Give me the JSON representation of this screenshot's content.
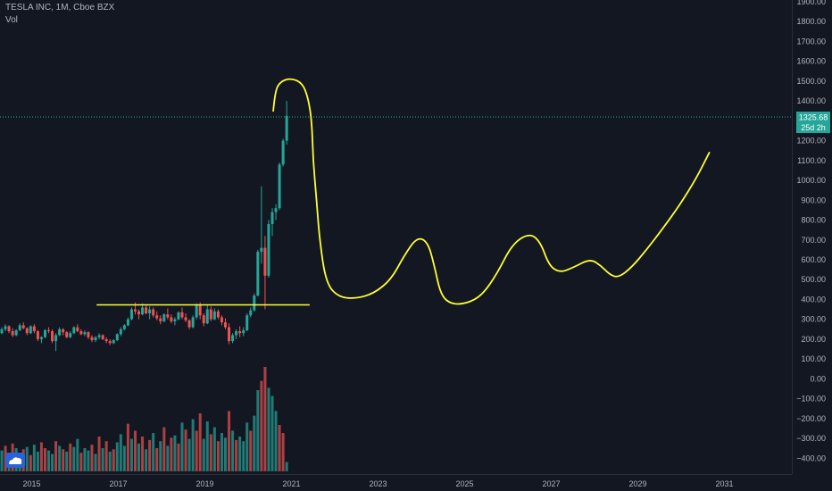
{
  "header": {
    "symbol_line": "TESLA INC, 1M, Cboe BZX",
    "volume_label": "Vol"
  },
  "colors": {
    "background": "#131722",
    "up": "#26a69a",
    "down": "#ef5350",
    "up_volume": "#26a69a",
    "down_volume": "#ef5350",
    "drawing": "#ffff33",
    "last_price_line": "#26a69a",
    "axis_text": "#b2b5be"
  },
  "price_tag": {
    "value": "1325.68",
    "countdown": "25d 2h"
  },
  "chart_data": {
    "type": "candlestick",
    "title": "",
    "xlabel": "",
    "ylabel": "",
    "y_axis_side": "right",
    "y_ticks": [
      "1900.00",
      "1800.00",
      "1700.00",
      "1600.00",
      "1500.00",
      "1400.00",
      "1300.00",
      "1200.00",
      "1100.00",
      "1000.00",
      "900.00",
      "800.00",
      "700.00",
      "600.00",
      "500.00",
      "400.00",
      "300.00",
      "200.00",
      "100.00",
      "0.00",
      "−100.00",
      "−200.00",
      "−300.00",
      "−400.00"
    ],
    "y_tick_values": [
      1900,
      1800,
      1700,
      1600,
      1500,
      1400,
      1300,
      1200,
      1100,
      1000,
      900,
      800,
      700,
      600,
      500,
      400,
      300,
      200,
      100,
      0,
      -100,
      -200,
      -300,
      -400
    ],
    "ylim": [
      -450,
      1950
    ],
    "x_ticks": [
      "2015",
      "2017",
      "2019",
      "2021",
      "2023",
      "2025",
      "2027",
      "2029",
      "2031"
    ],
    "x_tick_years": [
      2015,
      2017,
      2019,
      2021,
      2023,
      2025,
      2027,
      2029,
      2031
    ],
    "xlim": [
      2014.42,
      2032.0
    ],
    "last_price": 1325.68,
    "candles": [
      [
        230,
        260,
        225,
        250
      ],
      [
        250,
        275,
        240,
        265
      ],
      [
        265,
        270,
        230,
        240
      ],
      [
        240,
        255,
        210,
        220
      ],
      [
        220,
        250,
        215,
        245
      ],
      [
        245,
        280,
        240,
        270
      ],
      [
        270,
        285,
        250,
        255
      ],
      [
        255,
        260,
        220,
        230
      ],
      [
        230,
        270,
        225,
        265
      ],
      [
        265,
        275,
        230,
        240
      ],
      [
        240,
        245,
        190,
        200
      ],
      [
        200,
        215,
        180,
        210
      ],
      [
        210,
        250,
        205,
        245
      ],
      [
        245,
        260,
        230,
        240
      ],
      [
        240,
        250,
        180,
        190
      ],
      [
        190,
        230,
        140,
        220
      ],
      [
        220,
        260,
        215,
        250
      ],
      [
        250,
        255,
        220,
        235
      ],
      [
        235,
        240,
        205,
        210
      ],
      [
        210,
        240,
        205,
        230
      ],
      [
        230,
        265,
        225,
        260
      ],
      [
        260,
        275,
        235,
        240
      ],
      [
        240,
        250,
        220,
        225
      ],
      [
        225,
        245,
        215,
        235
      ],
      [
        235,
        240,
        200,
        210
      ],
      [
        210,
        220,
        185,
        195
      ],
      [
        195,
        215,
        185,
        210
      ],
      [
        210,
        230,
        200,
        220
      ],
      [
        220,
        225,
        195,
        200
      ],
      [
        200,
        210,
        180,
        190
      ],
      [
        190,
        200,
        170,
        180
      ],
      [
        180,
        200,
        175,
        195
      ],
      [
        195,
        230,
        190,
        225
      ],
      [
        225,
        260,
        215,
        250
      ],
      [
        250,
        275,
        245,
        270
      ],
      [
        270,
        310,
        265,
        300
      ],
      [
        300,
        360,
        295,
        350
      ],
      [
        350,
        385,
        325,
        340
      ],
      [
        340,
        350,
        300,
        325
      ],
      [
        325,
        380,
        320,
        360
      ],
      [
        360,
        370,
        325,
        330
      ],
      [
        330,
        365,
        300,
        350
      ],
      [
        350,
        360,
        310,
        320
      ],
      [
        320,
        340,
        295,
        305
      ],
      [
        305,
        320,
        275,
        290
      ],
      [
        290,
        330,
        285,
        325
      ],
      [
        325,
        355,
        300,
        310
      ],
      [
        310,
        325,
        280,
        290
      ],
      [
        290,
        310,
        270,
        300
      ],
      [
        300,
        340,
        295,
        335
      ],
      [
        335,
        360,
        300,
        310
      ],
      [
        310,
        330,
        285,
        295
      ],
      [
        295,
        300,
        250,
        260
      ],
      [
        260,
        320,
        255,
        310
      ],
      [
        310,
        380,
        300,
        370
      ],
      [
        370,
        385,
        300,
        320
      ],
      [
        320,
        330,
        265,
        280
      ],
      [
        280,
        370,
        275,
        350
      ],
      [
        350,
        365,
        290,
        300
      ],
      [
        300,
        355,
        295,
        340
      ],
      [
        340,
        350,
        300,
        310
      ],
      [
        310,
        320,
        270,
        285
      ],
      [
        285,
        305,
        250,
        260
      ],
      [
        260,
        280,
        175,
        190
      ],
      [
        190,
        230,
        180,
        220
      ],
      [
        220,
        250,
        200,
        240
      ],
      [
        240,
        265,
        210,
        230
      ],
      [
        230,
        260,
        215,
        245
      ],
      [
        245,
        330,
        240,
        320
      ],
      [
        320,
        360,
        310,
        345
      ],
      [
        345,
        430,
        340,
        420
      ],
      [
        420,
        650,
        415,
        640
      ],
      [
        640,
        970,
        580,
        660
      ],
      [
        660,
        720,
        350,
        520
      ],
      [
        520,
        800,
        510,
        780
      ],
      [
        780,
        860,
        720,
        840
      ],
      [
        840,
        880,
        800,
        860
      ],
      [
        860,
        1090,
        850,
        1080
      ],
      [
        1080,
        1210,
        1070,
        1200
      ],
      [
        1200,
        1400,
        1180,
        1325
      ]
    ],
    "volume_scale": [
      0,
      1000
    ],
    "volume": [
      [
        180,
        1
      ],
      [
        220,
        0
      ],
      [
        150,
        1
      ],
      [
        240,
        0
      ],
      [
        200,
        1
      ],
      [
        160,
        1
      ],
      [
        190,
        0
      ],
      [
        210,
        1
      ],
      [
        140,
        0
      ],
      [
        230,
        1
      ],
      [
        170,
        1
      ],
      [
        250,
        0
      ],
      [
        200,
        0
      ],
      [
        180,
        1
      ],
      [
        150,
        1
      ],
      [
        260,
        0
      ],
      [
        220,
        1
      ],
      [
        190,
        0
      ],
      [
        170,
        1
      ],
      [
        240,
        0
      ],
      [
        210,
        1
      ],
      [
        280,
        1
      ],
      [
        160,
        0
      ],
      [
        200,
        1
      ],
      [
        180,
        1
      ],
      [
        230,
        0
      ],
      [
        150,
        1
      ],
      [
        300,
        0
      ],
      [
        200,
        1
      ],
      [
        260,
        0
      ],
      [
        170,
        1
      ],
      [
        190,
        0
      ],
      [
        250,
        1
      ],
      [
        320,
        1
      ],
      [
        220,
        1
      ],
      [
        410,
        0
      ],
      [
        280,
        1
      ],
      [
        350,
        0
      ],
      [
        240,
        1
      ],
      [
        300,
        0
      ],
      [
        190,
        1
      ],
      [
        270,
        0
      ],
      [
        330,
        1
      ],
      [
        200,
        0
      ],
      [
        260,
        1
      ],
      [
        380,
        0
      ],
      [
        220,
        1
      ],
      [
        290,
        0
      ],
      [
        310,
        1
      ],
      [
        240,
        0
      ],
      [
        420,
        1
      ],
      [
        360,
        0
      ],
      [
        280,
        1
      ],
      [
        450,
        1
      ],
      [
        350,
        0
      ],
      [
        500,
        0
      ],
      [
        280,
        1
      ],
      [
        430,
        1
      ],
      [
        320,
        0
      ],
      [
        380,
        1
      ],
      [
        260,
        0
      ],
      [
        330,
        1
      ],
      [
        290,
        1
      ],
      [
        520,
        0
      ],
      [
        350,
        1
      ],
      [
        270,
        0
      ],
      [
        300,
        1
      ],
      [
        260,
        1
      ],
      [
        420,
        1
      ],
      [
        350,
        0
      ],
      [
        480,
        1
      ],
      [
        700,
        1
      ],
      [
        780,
        0
      ],
      [
        900,
        0
      ],
      [
        720,
        1
      ],
      [
        650,
        1
      ],
      [
        520,
        1
      ],
      [
        400,
        0
      ],
      [
        330,
        0
      ],
      [
        80,
        1
      ]
    ],
    "annotations": [
      {
        "type": "horizontal_segment",
        "from": [
          2016.5,
          373
        ],
        "to": [
          2021.42,
          373
        ]
      },
      {
        "type": "freehand_curve",
        "points": [
          [
            2020.58,
            1350
          ],
          [
            2020.62,
            1450
          ],
          [
            2020.75,
            1500
          ],
          [
            2021.0,
            1515
          ],
          [
            2021.25,
            1490
          ],
          [
            2021.38,
            1420
          ],
          [
            2021.47,
            1300
          ],
          [
            2021.5,
            1100
          ],
          [
            2021.58,
            900
          ],
          [
            2021.65,
            700
          ],
          [
            2021.8,
            480
          ],
          [
            2022.1,
            410
          ],
          [
            2022.5,
            405
          ],
          [
            2022.9,
            430
          ],
          [
            2023.3,
            500
          ],
          [
            2023.6,
            620
          ],
          [
            2023.9,
            715
          ],
          [
            2024.15,
            690
          ],
          [
            2024.3,
            570
          ],
          [
            2024.45,
            420
          ],
          [
            2024.7,
            375
          ],
          [
            2025.05,
            380
          ],
          [
            2025.4,
            420
          ],
          [
            2025.75,
            530
          ],
          [
            2026.1,
            680
          ],
          [
            2026.5,
            735
          ],
          [
            2026.75,
            690
          ],
          [
            2026.95,
            570
          ],
          [
            2027.2,
            535
          ],
          [
            2027.5,
            560
          ],
          [
            2027.9,
            605
          ],
          [
            2028.15,
            570
          ],
          [
            2028.35,
            525
          ],
          [
            2028.55,
            510
          ],
          [
            2028.85,
            560
          ],
          [
            2029.2,
            650
          ],
          [
            2029.55,
            750
          ],
          [
            2029.95,
            870
          ],
          [
            2030.35,
            1010
          ],
          [
            2030.65,
            1140
          ]
        ]
      }
    ]
  }
}
